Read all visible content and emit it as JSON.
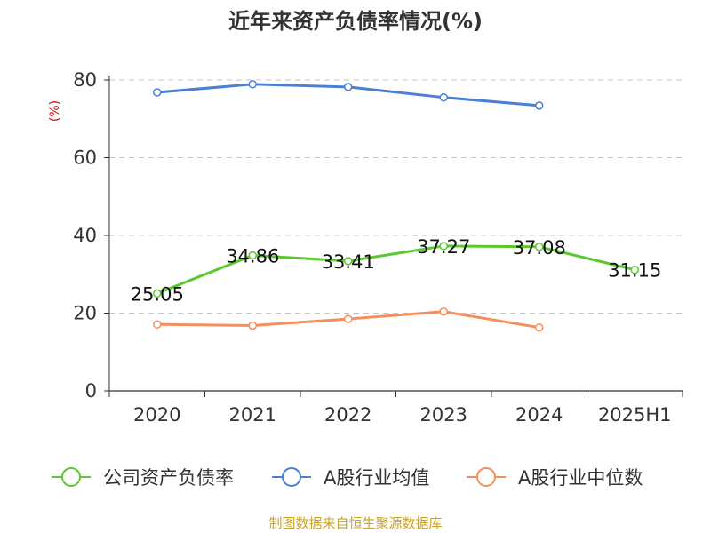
{
  "chart_data": {
    "type": "line",
    "title": "近年来资产负债率情况(%)",
    "ylabel": "(%)",
    "categories": [
      "2020",
      "2021",
      "2022",
      "2023",
      "2024",
      "2025H1"
    ],
    "ylim": [
      0,
      80
    ],
    "yticks": [
      0,
      20,
      40,
      60,
      80
    ],
    "grid": true,
    "legend_position": "bottom",
    "series": [
      {
        "name": "公司资产负债率",
        "color": "#5cc82f",
        "values": [
          25.05,
          34.86,
          33.41,
          37.27,
          37.08,
          31.15
        ],
        "labels": [
          "25.05",
          "34.86",
          "33.41",
          "37.27",
          "37.08",
          "31.15"
        ]
      },
      {
        "name": "A股行业均值",
        "color": "#4a7fd6",
        "values": [
          76.8,
          78.9,
          78.2,
          75.5,
          73.4,
          null
        ]
      },
      {
        "name": "A股行业中位数",
        "color": "#f68d5a",
        "values": [
          17.1,
          16.8,
          18.5,
          20.4,
          16.3,
          null
        ]
      }
    ]
  },
  "footer": {
    "source": "制图数据来自恒生聚源数据库"
  }
}
